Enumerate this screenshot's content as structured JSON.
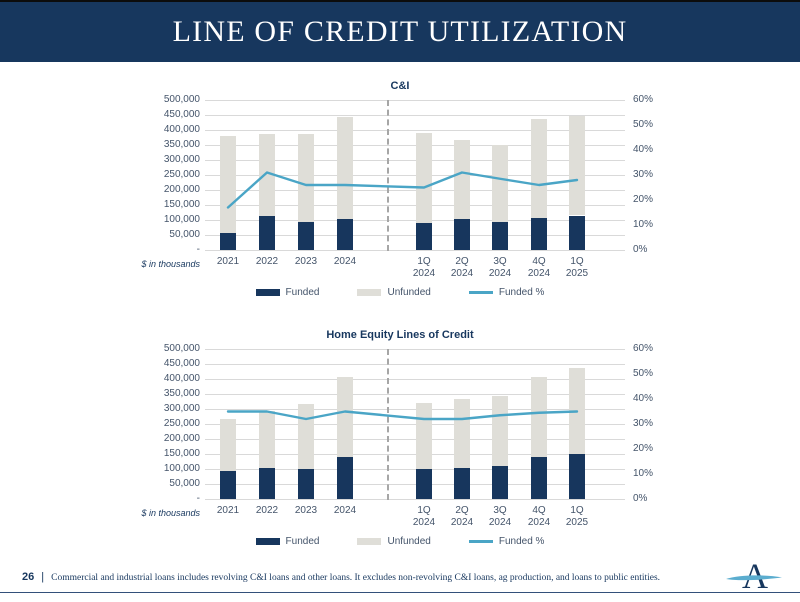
{
  "header": {
    "title": "LINE OF CREDIT UTILIZATION"
  },
  "colors": {
    "header_bg": "#17375e",
    "funded_bar": "#17365d",
    "unfunded_bar": "#dfded8",
    "funded_line": "#4aa5c6",
    "tick_text": "#44546a",
    "gridline": "#d9d9d9",
    "divider": "#a6a6a6",
    "logo_swoosh": "#5badcf"
  },
  "chart_data": [
    {
      "type": "bar",
      "subtype": "stacked-bars-with-percent-line",
      "title": "C&I",
      "axis_note": "$ in thousands",
      "categories": [
        "2021",
        "2022",
        "2023",
        "2024",
        "1Q 2024",
        "2Q 2024",
        "3Q 2024",
        "4Q 2024",
        "1Q 2025"
      ],
      "series": [
        {
          "name": "Funded",
          "kind": "bar",
          "color": "#17365d",
          "values": [
            57000,
            113000,
            93000,
            103000,
            90000,
            103000,
            92000,
            106000,
            115000
          ]
        },
        {
          "name": "Unfunded",
          "kind": "bar",
          "color": "#dfded8",
          "values": [
            323000,
            275000,
            295000,
            340000,
            299000,
            265000,
            259000,
            332000,
            332000
          ]
        },
        {
          "name": "Funded %",
          "kind": "line",
          "color": "#4aa5c6",
          "axis": "right",
          "values": [
            17,
            31,
            26,
            26,
            25,
            31,
            28.5,
            26,
            28
          ]
        }
      ],
      "y_left": {
        "min": 0,
        "max": 500000,
        "ticks": [
          "500,000",
          "450,000",
          "400,000",
          "350,000",
          "300,000",
          "250,000",
          "200,000",
          "150,000",
          "100,000",
          "50,000",
          "-"
        ]
      },
      "y_right": {
        "min": 0,
        "max": 60,
        "ticks": [
          "60%",
          "50%",
          "40%",
          "30%",
          "20%",
          "10%",
          "0%"
        ]
      },
      "divider_after": "2024",
      "grid": true,
      "legend_position": "bottom"
    },
    {
      "type": "bar",
      "subtype": "stacked-bars-with-percent-line",
      "title": "Home Equity Lines of Credit",
      "axis_note": "$ in thousands",
      "categories": [
        "2021",
        "2022",
        "2023",
        "2024",
        "1Q 2024",
        "2Q 2024",
        "3Q 2024",
        "4Q 2024",
        "1Q 2025"
      ],
      "series": [
        {
          "name": "Funded",
          "kind": "bar",
          "color": "#17365d",
          "values": [
            94000,
            103000,
            99000,
            141000,
            100000,
            104000,
            110000,
            139000,
            150000
          ]
        },
        {
          "name": "Unfunded",
          "kind": "bar",
          "color": "#dfded8",
          "values": [
            172000,
            189000,
            219000,
            265000,
            220000,
            228000,
            234000,
            268000,
            286000
          ]
        },
        {
          "name": "Funded %",
          "kind": "line",
          "color": "#4aa5c6",
          "axis": "right",
          "values": [
            35,
            35,
            32,
            35,
            32,
            32,
            33.5,
            34.5,
            35
          ]
        }
      ],
      "y_left": {
        "min": 0,
        "max": 500000,
        "ticks": [
          "500,000",
          "450,000",
          "400,000",
          "350,000",
          "300,000",
          "250,000",
          "200,000",
          "150,000",
          "100,000",
          "50,000",
          "-"
        ]
      },
      "y_right": {
        "min": 0,
        "max": 60,
        "ticks": [
          "60%",
          "50%",
          "40%",
          "30%",
          "20%",
          "10%",
          "0%"
        ]
      },
      "divider_after": "2024",
      "grid": true,
      "legend_position": "bottom"
    }
  ],
  "footer": {
    "page": "26",
    "separator": "|",
    "note": "Commercial and industrial loans includes revolving C&I loans and other loans. It excludes non-revolving C&I loans, ag production, and loans to public entities.",
    "logo_letter": "A"
  }
}
